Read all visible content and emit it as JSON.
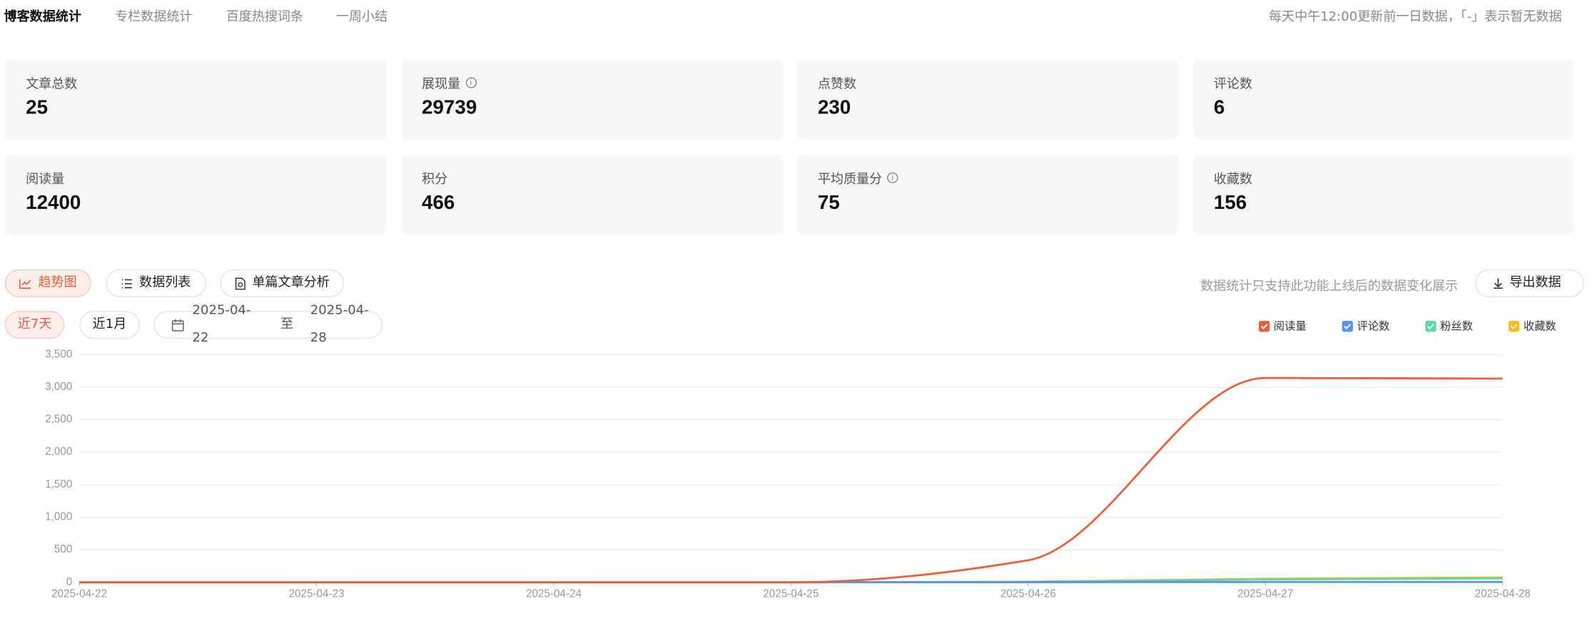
{
  "tabs": [
    "博客数据统计",
    "专栏数据统计",
    "百度热搜词条",
    "一周小结"
  ],
  "note": "每天中午12:00更新前一日数据，「-」表示暂无数据",
  "stats": [
    {
      "label": "文章总数",
      "value": 25
    },
    {
      "label": "展现量",
      "value": 29739
    },
    {
      "label": "点赞数",
      "value": 230
    },
    {
      "label": "评论数",
      "value": 6
    },
    {
      "label": "阅读量",
      "value": 12400
    },
    {
      "label": "积分",
      "value": 466
    },
    {
      "label": "平均质量分",
      "value": 75
    },
    {
      "label": "收藏数",
      "value": 156
    }
  ],
  "toolbar": {
    "views": [
      "趋势图",
      "数据列表",
      "单篇文章分析"
    ],
    "hint": "数据统计只支持此功能上线后的数据变化展示",
    "export": "导出数据"
  },
  "filters": {
    "ranges": [
      "近7天",
      "近1月"
    ],
    "start": "2025-04-22",
    "separator": "至",
    "end": "2025-04-28"
  },
  "chart_data": {
    "type": "line",
    "x": [
      "2025-04-22",
      "2025-04-23",
      "2025-04-24",
      "2025-04-25",
      "2025-04-26",
      "2025-04-27",
      "2025-04-28"
    ],
    "series": [
      {
        "name": "阅读量",
        "color": "#e8603c",
        "values": [
          0,
          0,
          0,
          0,
          340,
          3140,
          3130
        ]
      },
      {
        "name": "评论数",
        "color": "#5b8ff9",
        "values": [
          0,
          0,
          0,
          0,
          2,
          6,
          6
        ]
      },
      {
        "name": "粉丝数",
        "color": "#5ad8a6",
        "values": [
          0,
          0,
          0,
          0,
          8,
          45,
          60
        ]
      },
      {
        "name": "收藏数",
        "color": "#f6bd16",
        "values": [
          0,
          0,
          0,
          0,
          10,
          55,
          75
        ]
      }
    ],
    "ylim": [
      0,
      3500
    ],
    "yticks": [
      0,
      500,
      {
        "value": 1000,
        "label": "1,000"
      },
      {
        "value": 1500,
        "label": "1,500"
      },
      {
        "value": 2000,
        "label": "2,000"
      },
      {
        "value": 2500,
        "label": "2,500"
      },
      {
        "value": 3000,
        "label": "3,000"
      },
      {
        "value": 3500,
        "label": "3,500"
      }
    ],
    "grid": true
  }
}
